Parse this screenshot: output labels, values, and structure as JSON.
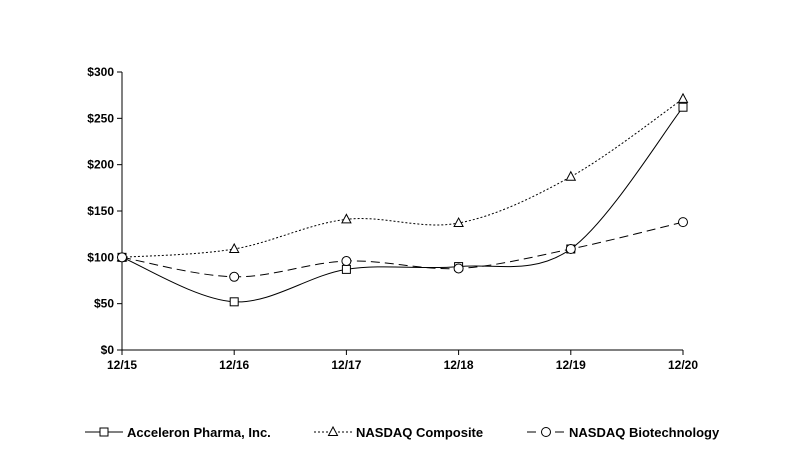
{
  "chart_data": {
    "type": "line",
    "title": "",
    "xlabel": "",
    "ylabel": "",
    "categories": [
      "12/15",
      "12/16",
      "12/17",
      "12/18",
      "12/19",
      "12/20"
    ],
    "ylim": [
      0,
      300
    ],
    "yticks": [
      0,
      50,
      100,
      150,
      200,
      250,
      300
    ],
    "ytick_labels": [
      "$0",
      "$50",
      "$100",
      "$150",
      "$200",
      "$250",
      "$300"
    ],
    "grid": false,
    "legend_position": "bottom",
    "series": [
      {
        "name": "Acceleron Pharma, Inc.",
        "values": [
          100,
          52,
          87,
          90,
          109,
          262
        ],
        "marker": "square",
        "line_style": "solid",
        "color": "#000000"
      },
      {
        "name": "NASDAQ Composite",
        "values": [
          100,
          109,
          141,
          137,
          187,
          271
        ],
        "marker": "triangle",
        "line_style": "dotted",
        "color": "#000000"
      },
      {
        "name": "NASDAQ Biotechnology",
        "values": [
          100,
          79,
          96,
          88,
          109,
          138
        ],
        "marker": "circle",
        "line_style": "dashed",
        "color": "#000000"
      }
    ]
  }
}
